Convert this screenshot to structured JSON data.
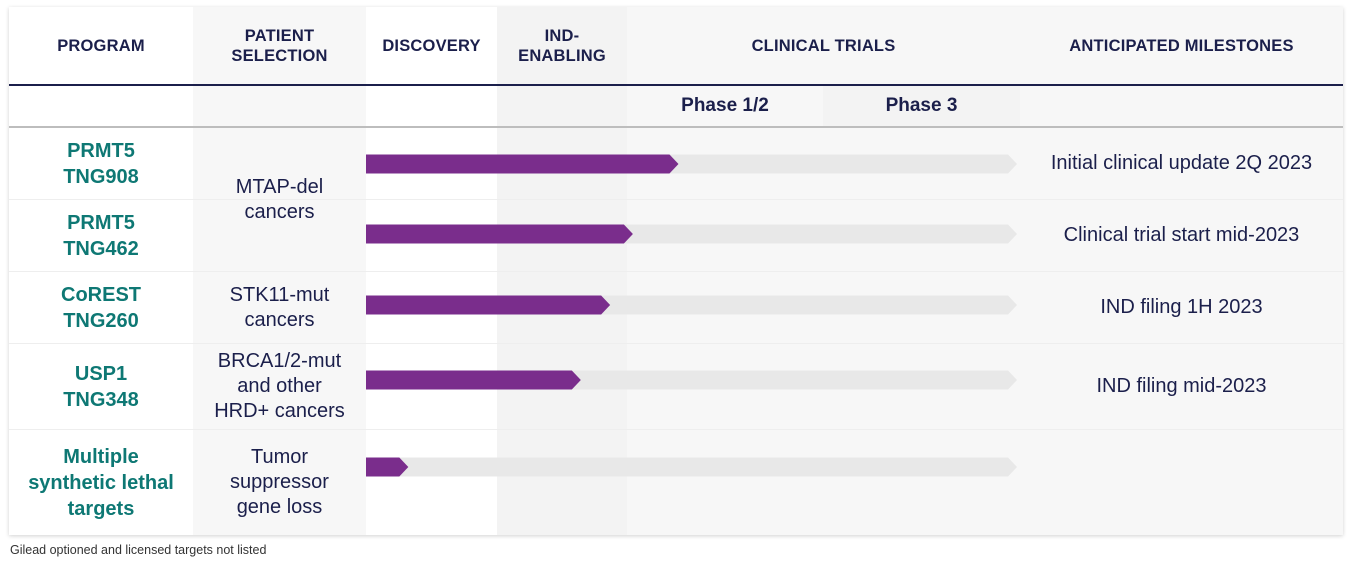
{
  "headers": {
    "program": [
      "PROGRAM"
    ],
    "patient_selection": [
      "PATIENT",
      "SELECTION"
    ],
    "discovery": [
      "DISCOVERY"
    ],
    "ind_enabling": [
      "IND-",
      "ENABLING"
    ],
    "clinical_trials": [
      "CLINICAL TRIALS"
    ],
    "milestones": [
      "ANTICIPATED MILESTONES"
    ]
  },
  "phases": [
    "Phase 1/2",
    "Phase 3"
  ],
  "rows": [
    {
      "program": [
        "PRMT5",
        "TNG908"
      ],
      "milestone": "Initial clinical update 2Q 2023",
      "progress": 0.48
    },
    {
      "program": [
        "PRMT5",
        "TNG462"
      ],
      "milestone": "Clinical trial start mid-2023",
      "progress": 0.41
    },
    {
      "program": [
        "CoREST",
        "TNG260"
      ],
      "milestone": "IND filing 1H 2023",
      "progress": 0.375
    },
    {
      "program": [
        "USP1",
        "TNG348"
      ],
      "milestone": "IND filing mid-2023",
      "progress": 0.33
    },
    {
      "program": [
        "Multiple",
        "synthetic lethal",
        "targets"
      ],
      "milestone": "",
      "progress": 0.065
    }
  ],
  "patient_selection_groups": [
    [
      "MTAP-del",
      "cancers"
    ],
    [
      "STK11-mut",
      "cancers"
    ],
    [
      "BRCA1/2-mut",
      "and other",
      "HRD+ cancers"
    ],
    [
      "Tumor",
      "suppressor",
      "gene loss"
    ]
  ],
  "colors": {
    "progress_fill": "#7a2d8c",
    "track": "#e8e8e8",
    "program_text": "#0e7874",
    "header_text": "#1b1f4b"
  },
  "footnote": "Gilead optioned and licensed targets not listed"
}
